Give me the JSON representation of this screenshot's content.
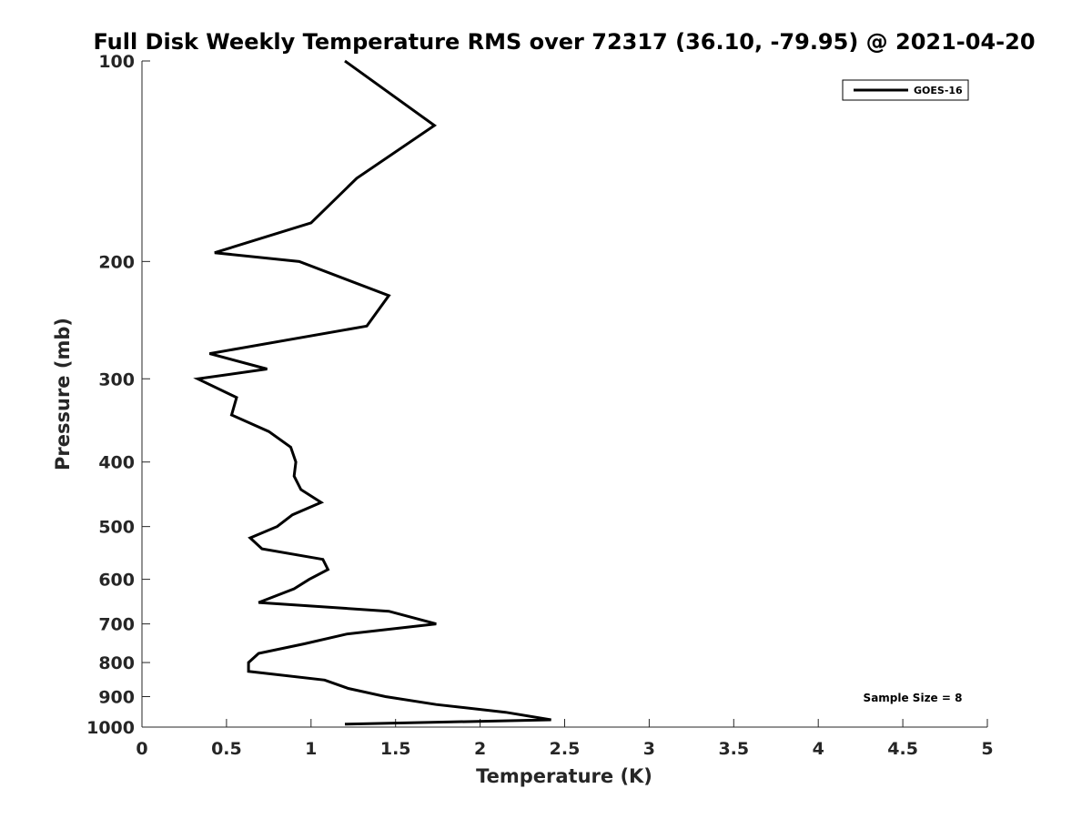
{
  "chart_data": {
    "type": "line",
    "title": "Full Disk Weekly Temperature RMS over 72317 (36.10, -79.95) @ 2021-04-20",
    "xlabel": "Temperature (K)",
    "ylabel": "Pressure (mb)",
    "xlim": [
      0,
      5
    ],
    "ylim": [
      100,
      1000
    ],
    "y_scale": "log",
    "y_reversed": true,
    "x_ticks": [
      "0",
      "0.5",
      "1",
      "1.5",
      "2",
      "2.5",
      "3",
      "3.5",
      "4",
      "4.5",
      "5"
    ],
    "y_ticks": [
      "100",
      "200",
      "300",
      "400",
      "500",
      "600",
      "700",
      "800",
      "900",
      "1000"
    ],
    "grid": false,
    "legend_position": "top-right",
    "annotation": "Sample Size = 8",
    "series": [
      {
        "name": "GOES-16",
        "color": "#000000",
        "points": [
          [
            1.2,
            100
          ],
          [
            1.73,
            125
          ],
          [
            1.27,
            150
          ],
          [
            1.0,
            175
          ],
          [
            0.43,
            194
          ],
          [
            0.93,
            200
          ],
          [
            1.46,
            225
          ],
          [
            1.33,
            250
          ],
          [
            0.4,
            275
          ],
          [
            0.74,
            290
          ],
          [
            0.33,
            300
          ],
          [
            0.56,
            320
          ],
          [
            0.53,
            340
          ],
          [
            0.75,
            360
          ],
          [
            0.88,
            380
          ],
          [
            0.91,
            400
          ],
          [
            0.9,
            420
          ],
          [
            0.94,
            440
          ],
          [
            1.06,
            460
          ],
          [
            0.89,
            480
          ],
          [
            0.8,
            500
          ],
          [
            0.64,
            520
          ],
          [
            0.71,
            540
          ],
          [
            1.07,
            560
          ],
          [
            1.1,
            580
          ],
          [
            0.99,
            600
          ],
          [
            0.9,
            620
          ],
          [
            0.69,
            650
          ],
          [
            1.46,
            670
          ],
          [
            1.74,
            700
          ],
          [
            1.21,
            725
          ],
          [
            0.96,
            750
          ],
          [
            0.69,
            775
          ],
          [
            0.63,
            800
          ],
          [
            0.63,
            825
          ],
          [
            1.08,
            850
          ],
          [
            1.22,
            875
          ],
          [
            1.44,
            900
          ],
          [
            1.74,
            925
          ],
          [
            2.15,
            950
          ],
          [
            2.42,
            975
          ],
          [
            1.2,
            990
          ]
        ]
      }
    ]
  }
}
